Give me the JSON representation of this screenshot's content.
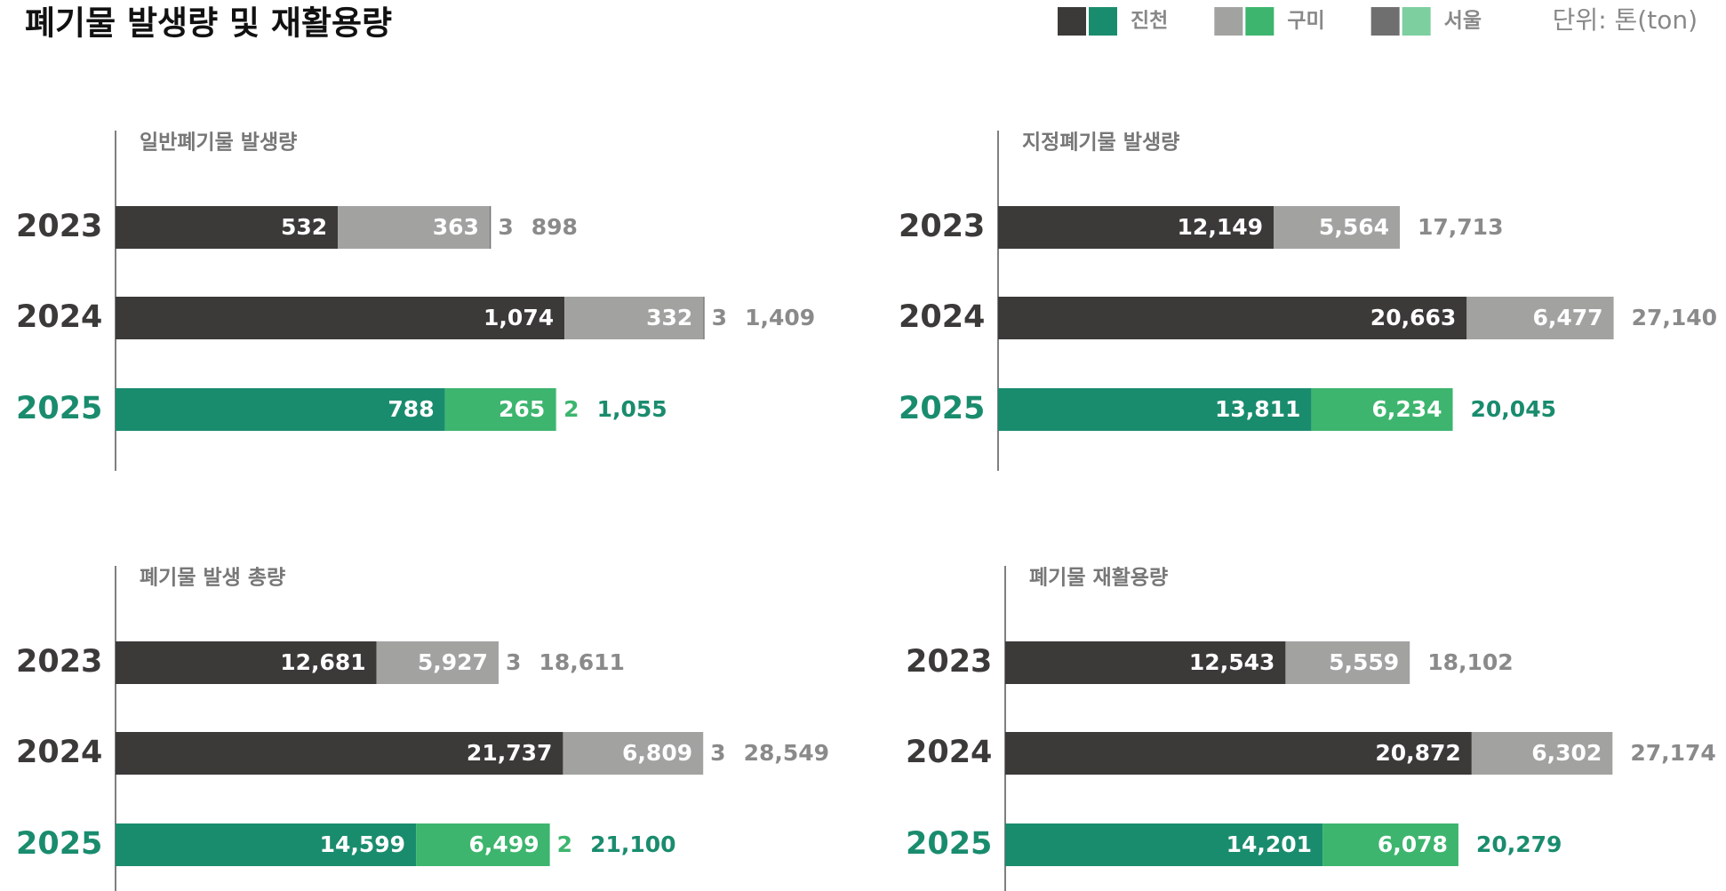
{
  "title": "폐기물 발생량 및 재활용량",
  "unit": "단위: 톤(ton)",
  "chart_data": [
    {
      "type": "bar",
      "title": "일반폐기물 발생량",
      "categories": [
        "2023",
        "2024",
        "2025"
      ],
      "xlim": [
        0,
        1465
      ],
      "label_colors": [
        "#8a8a8a",
        "#8a8a8a",
        "#1a8c6e"
      ],
      "series": [
        {
          "name": "진천",
          "colors": [
            "#3c3939",
            "#3c3939",
            "#1a8c6e"
          ],
          "values": [
            532,
            1074,
            788
          ],
          "value_labels": [
            "532",
            "1,074",
            "788"
          ]
        },
        {
          "name": "구미",
          "colors": [
            "#a2a2a1",
            "#a2a2a1",
            "#3db56e"
          ],
          "values": [
            363,
            332,
            265
          ]
        },
        {
          "name": "서울",
          "colors": [
            "#6f6f6f",
            "#6f6f6f",
            "#7dcfa0"
          ],
          "values": [
            3,
            3,
            2
          ]
        }
      ],
      "totals": [
        898,
        1409,
        1055
      ],
      "total_labels": [
        "898",
        "1,409",
        "1,055"
      ]
    },
    {
      "type": "bar",
      "title": "지정폐기물 발생량",
      "categories": [
        "2023",
        "2024",
        "2025"
      ],
      "xlim": [
        0,
        27000
      ],
      "label_colors": [
        "#8a8a8a",
        "#8a8a8a",
        "#1a8c6e"
      ],
      "series": [
        {
          "name": "진천",
          "colors": [
            "#3c3939",
            "#3c3939",
            "#1a8c6e"
          ],
          "values": [
            12149,
            20663,
            13811
          ],
          "value_labels": [
            "12,149",
            "20,663",
            "13,811"
          ]
        },
        {
          "name": "구미",
          "colors": [
            "#a2a2a1",
            "#a2a2a1",
            "#3db56e"
          ],
          "values": [
            5564,
            6477,
            6234
          ],
          "value_labels": [
            "5,564",
            "6,477",
            "6,234"
          ]
        },
        {
          "name": "서울",
          "colors": [
            "#6f6f6f",
            "#6f6f6f",
            "#7dcfa0"
          ],
          "values": [
            null,
            null,
            null
          ]
        }
      ],
      "totals": [
        17713,
        27140,
        20045
      ],
      "total_labels": [
        "17,713",
        "27,140",
        "20,045"
      ]
    },
    {
      "type": "bar",
      "title": "폐기물 발생 총량",
      "categories": [
        "2023",
        "2024",
        "2025"
      ],
      "xlim": [
        0,
        29750
      ],
      "label_colors": [
        "#8a8a8a",
        "#8a8a8a",
        "#1a8c6e"
      ],
      "series": [
        {
          "name": "진천",
          "colors": [
            "#3c3939",
            "#3c3939",
            "#1a8c6e"
          ],
          "values": [
            12681,
            21737,
            14599
          ],
          "value_labels": [
            "12,681",
            "21,737",
            "14,599"
          ]
        },
        {
          "name": "구미",
          "colors": [
            "#a2a2a1",
            "#a2a2a1",
            "#3db56e"
          ],
          "values": [
            5927,
            6809,
            6499
          ],
          "value_labels": [
            "5,927",
            "6,809",
            "6,499"
          ]
        },
        {
          "name": "서울",
          "colors": [
            "#6f6f6f",
            "#6f6f6f",
            "#7dcfa0"
          ],
          "values": [
            3,
            3,
            2
          ]
        }
      ],
      "totals": [
        18611,
        28549,
        21100
      ],
      "total_labels": [
        "18,611",
        "28,549",
        "21,100"
      ]
    },
    {
      "type": "bar",
      "title": "폐기물 재활용량",
      "categories": [
        "2023",
        "2024",
        "2025"
      ],
      "xlim": [
        0,
        27400
      ],
      "label_colors": [
        "#8a8a8a",
        "#8a8a8a",
        "#1a8c6e"
      ],
      "series": [
        {
          "name": "진천",
          "colors": [
            "#3c3939",
            "#3c3939",
            "#1a8c6e"
          ],
          "values": [
            12543,
            20872,
            14201
          ],
          "value_labels": [
            "12,543",
            "20,872",
            "14,201"
          ]
        },
        {
          "name": "구미",
          "colors": [
            "#a2a2a1",
            "#a2a2a1",
            "#3db56e"
          ],
          "values": [
            5559,
            6302,
            6078
          ],
          "value_labels": [
            "5,559",
            "6,302",
            "6,078"
          ]
        },
        {
          "name": "서울",
          "colors": [
            "#6f6f6f",
            "#6f6f6f",
            "#7dcfa0"
          ],
          "values": [
            null,
            null,
            null
          ]
        }
      ],
      "totals": [
        18102,
        27174,
        20279
      ],
      "total_labels": [
        "18,102",
        "27,174",
        "20,279"
      ]
    }
  ]
}
